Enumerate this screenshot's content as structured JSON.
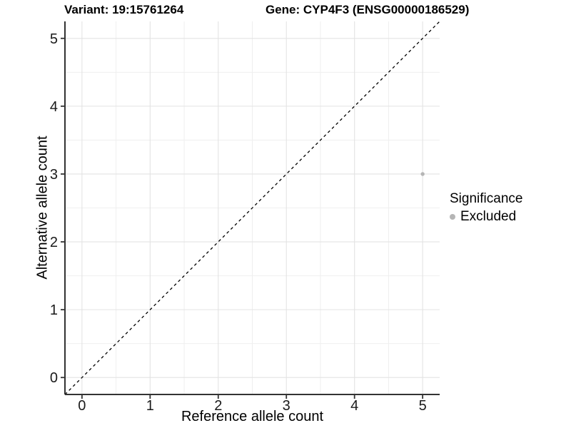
{
  "chart_data": {
    "type": "scatter",
    "title_variant": "Variant: 19:15761264",
    "title_gene": "Gene: CYP4F3 (ENSG00000186529)",
    "xlabel": "Reference allele count",
    "ylabel": "Alternative allele count",
    "xlim": [
      -0.25,
      5.25
    ],
    "ylim": [
      -0.25,
      5.25
    ],
    "xticks": [
      0,
      1,
      2,
      3,
      4,
      5
    ],
    "yticks": [
      0,
      1,
      2,
      3,
      4,
      5
    ],
    "minor_grid_step": 0.5,
    "grid": true,
    "points": [
      {
        "x": 5,
        "y": 3,
        "series": "Excluded"
      }
    ],
    "reference_line": {
      "type": "identity",
      "style": "dashed",
      "color": "#000000"
    },
    "legend": {
      "title": "Significance",
      "position": "right",
      "items": [
        {
          "label": "Excluded",
          "color": "#b5b5b5"
        }
      ]
    },
    "colors": {
      "background": "#ffffff",
      "point": "#b5b5b5",
      "grid_major": "#e3e3e3",
      "grid_minor": "#efefef",
      "axis": "#333333",
      "tick_label": "#1a1a1a"
    }
  }
}
